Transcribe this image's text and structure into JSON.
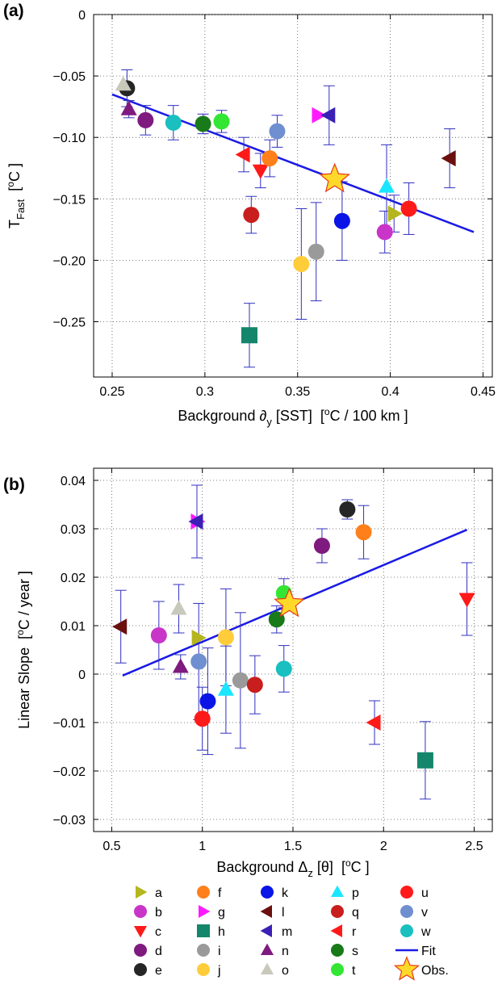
{
  "colors": {
    "a": "#b5b51e",
    "b": "#c935c9",
    "c": "#ff1a1a",
    "d": "#7f1a7f",
    "e": "#262626",
    "f": "#ff7f1a",
    "g": "#ff1aff",
    "h": "#14866b",
    "i": "#9a9a9a",
    "j": "#ffcc3a",
    "k": "#0a14e6",
    "l": "#6b0f0f",
    "m": "#3a20b5",
    "n": "#7f1a7f",
    "o": "#c8c8bb",
    "p": "#1ae6ff",
    "q": "#c81e1e",
    "r": "#ff1a1a",
    "s": "#197a19",
    "t": "#33e633",
    "u": "#ff1a1a",
    "v": "#6f8fd0",
    "w": "#1abfbf",
    "fit": "#1a1ae6",
    "star_fill": "#ffd92a",
    "star_edge": "#e63a1a",
    "errbar": "#3030c0"
  },
  "chart_data": [
    {
      "panel_label": "(a)",
      "type": "scatter",
      "xlabel": "Background ∂y [SST]  [°C / 100 km ]",
      "ylabel": "TFast  [°C ]",
      "xlim": [
        0.24,
        0.455
      ],
      "ylim": [
        -0.295,
        0
      ],
      "xticks": [
        "0.25",
        "0.3",
        "0.35",
        "0.4",
        "0.45"
      ],
      "yticks": [
        "0",
        "−0.05",
        "−0.10",
        "−0.15",
        "−0.20",
        "−0.25"
      ],
      "grid": true,
      "fit": {
        "x": [
          0.25,
          0.445
        ],
        "y": [
          -0.065,
          -0.177
        ]
      },
      "points": [
        {
          "id": "a",
          "x": 0.402,
          "y": -0.162,
          "err": 0.015
        },
        {
          "id": "b",
          "x": 0.397,
          "y": -0.177,
          "err": 0.017
        },
        {
          "id": "c",
          "x": 0.33,
          "y": -0.127,
          "err": 0.014
        },
        {
          "id": "d",
          "x": 0.268,
          "y": -0.086,
          "err": 0.012
        },
        {
          "id": "e",
          "x": 0.258,
          "y": -0.06,
          "err": 0.015
        },
        {
          "id": "f",
          "x": 0.335,
          "y": -0.117,
          "err": 0.015
        },
        {
          "id": "g",
          "x": 0.361,
          "y": -0.082,
          "err": 0.0
        },
        {
          "id": "h",
          "x": 0.324,
          "y": -0.261,
          "err": 0.026
        },
        {
          "id": "i",
          "x": 0.36,
          "y": -0.193,
          "err": 0.04
        },
        {
          "id": "j",
          "x": 0.352,
          "y": -0.203,
          "err": 0.045
        },
        {
          "id": "k",
          "x": 0.374,
          "y": -0.168,
          "err": 0.032
        },
        {
          "id": "l",
          "x": 0.432,
          "y": -0.117,
          "err": 0.024
        },
        {
          "id": "m",
          "x": 0.367,
          "y": -0.082,
          "err": 0.024
        },
        {
          "id": "n",
          "x": 0.259,
          "y": -0.077,
          "err": 0.007
        },
        {
          "id": "o",
          "x": 0.256,
          "y": -0.057,
          "err": 0.0
        },
        {
          "id": "p",
          "x": 0.398,
          "y": -0.14,
          "err": 0.034
        },
        {
          "id": "q",
          "x": 0.325,
          "y": -0.163,
          "err": 0.015
        },
        {
          "id": "r",
          "x": 0.321,
          "y": -0.114,
          "err": 0.014
        },
        {
          "id": "s",
          "x": 0.299,
          "y": -0.089,
          "err": 0.008
        },
        {
          "id": "t",
          "x": 0.309,
          "y": -0.087,
          "err": 0.009
        },
        {
          "id": "u",
          "x": 0.41,
          "y": -0.158,
          "err": 0.021
        },
        {
          "id": "v",
          "x": 0.339,
          "y": -0.095,
          "err": 0.013
        },
        {
          "id": "w",
          "x": 0.283,
          "y": -0.088,
          "err": 0.014
        },
        {
          "id": "star",
          "x": 0.37,
          "y": -0.134,
          "err": 0.0
        }
      ]
    },
    {
      "panel_label": "(b)",
      "type": "scatter",
      "xlabel": "Background Δz [θ]  [°C ]",
      "ylabel": "Linear Slope  [°C / year ]",
      "xlim": [
        0.4,
        2.6
      ],
      "ylim": [
        -0.0325,
        0.0425
      ],
      "xticks": [
        "0.5",
        "1",
        "1.5",
        "2",
        "2.5"
      ],
      "yticks": [
        "0.04",
        "0.03",
        "0.02",
        "0.01",
        "0",
        "−0.01",
        "−0.02",
        "−0.03"
      ],
      "grid": true,
      "fit": {
        "x": [
          0.56,
          2.46
        ],
        "y": [
          -0.0003,
          0.0298
        ]
      },
      "points": [
        {
          "id": "a",
          "x": 0.975,
          "y": 0.0075,
          "err": 0.0
        },
        {
          "id": "b",
          "x": 0.76,
          "y": 0.008,
          "err": 0.007
        },
        {
          "id": "c",
          "x": 2.46,
          "y": 0.0155,
          "err": 0.0075
        },
        {
          "id": "d",
          "x": 1.66,
          "y": 0.0265,
          "err": 0.0035
        },
        {
          "id": "e",
          "x": 1.8,
          "y": 0.034,
          "err": 0.002
        },
        {
          "id": "f",
          "x": 1.89,
          "y": 0.0293,
          "err": 0.0055
        },
        {
          "id": "g",
          "x": 0.97,
          "y": 0.0315,
          "err": 0.0075
        },
        {
          "id": "h",
          "x": 2.23,
          "y": -0.0178,
          "err": 0.008
        },
        {
          "id": "i",
          "x": 1.21,
          "y": -0.0013,
          "err": 0.014
        },
        {
          "id": "j",
          "x": 1.13,
          "y": 0.0076,
          "err": 0.01
        },
        {
          "id": "k",
          "x": 1.03,
          "y": -0.0056,
          "err": 0.011
        },
        {
          "id": "l",
          "x": 0.55,
          "y": 0.0098,
          "err": 0.0075
        },
        {
          "id": "m",
          "x": 0.97,
          "y": 0.0315,
          "err": 0.0075
        },
        {
          "id": "n",
          "x": 0.88,
          "y": 0.0015,
          "err": 0.0025
        },
        {
          "id": "o",
          "x": 0.87,
          "y": 0.0135,
          "err": 0.005
        },
        {
          "id": "p",
          "x": 1.13,
          "y": -0.0032,
          "err": 0.009
        },
        {
          "id": "q",
          "x": 1.29,
          "y": -0.0022,
          "err": 0.006
        },
        {
          "id": "r",
          "x": 1.95,
          "y": -0.01,
          "err": 0.0045
        },
        {
          "id": "s",
          "x": 1.41,
          "y": 0.0113,
          "err": 0.0028
        },
        {
          "id": "t",
          "x": 1.45,
          "y": 0.0167,
          "err": 0.003
        },
        {
          "id": "u",
          "x": 1.0,
          "y": -0.0092,
          "err": 0.0065
        },
        {
          "id": "v",
          "x": 0.98,
          "y": 0.0026,
          "err": 0.012
        },
        {
          "id": "w",
          "x": 1.45,
          "y": 0.0011,
          "err": 0.0048
        },
        {
          "id": "star",
          "x": 1.48,
          "y": 0.0145,
          "err": 0.0
        }
      ]
    }
  ],
  "legend": {
    "placement": "bottom",
    "items": [
      {
        "id": "a",
        "label": "a",
        "marker": "triangle-right"
      },
      {
        "id": "b",
        "label": "b",
        "marker": "circle"
      },
      {
        "id": "c",
        "label": "c",
        "marker": "triangle-down"
      },
      {
        "id": "d",
        "label": "d",
        "marker": "circle"
      },
      {
        "id": "e",
        "label": "e",
        "marker": "circle"
      },
      {
        "id": "f",
        "label": "f",
        "marker": "circle"
      },
      {
        "id": "g",
        "label": "g",
        "marker": "triangle-right"
      },
      {
        "id": "h",
        "label": "h",
        "marker": "square"
      },
      {
        "id": "i",
        "label": "i",
        "marker": "circle"
      },
      {
        "id": "j",
        "label": "j",
        "marker": "circle"
      },
      {
        "id": "k",
        "label": "k",
        "marker": "circle"
      },
      {
        "id": "l",
        "label": "l",
        "marker": "triangle-left"
      },
      {
        "id": "m",
        "label": "m",
        "marker": "triangle-left"
      },
      {
        "id": "n",
        "label": "n",
        "marker": "triangle-up"
      },
      {
        "id": "o",
        "label": "o",
        "marker": "triangle-up"
      },
      {
        "id": "p",
        "label": "p",
        "marker": "triangle-up"
      },
      {
        "id": "q",
        "label": "q",
        "marker": "circle"
      },
      {
        "id": "r",
        "label": "r",
        "marker": "triangle-left"
      },
      {
        "id": "s",
        "label": "s",
        "marker": "circle"
      },
      {
        "id": "t",
        "label": "t",
        "marker": "circle"
      },
      {
        "id": "u",
        "label": "u",
        "marker": "circle"
      },
      {
        "id": "v",
        "label": "v",
        "marker": "circle"
      },
      {
        "id": "w",
        "label": "w",
        "marker": "circle"
      },
      {
        "id": "fit",
        "label": "Fit",
        "marker": "line"
      },
      {
        "id": "star",
        "label": "Obs.",
        "marker": "star"
      }
    ]
  }
}
